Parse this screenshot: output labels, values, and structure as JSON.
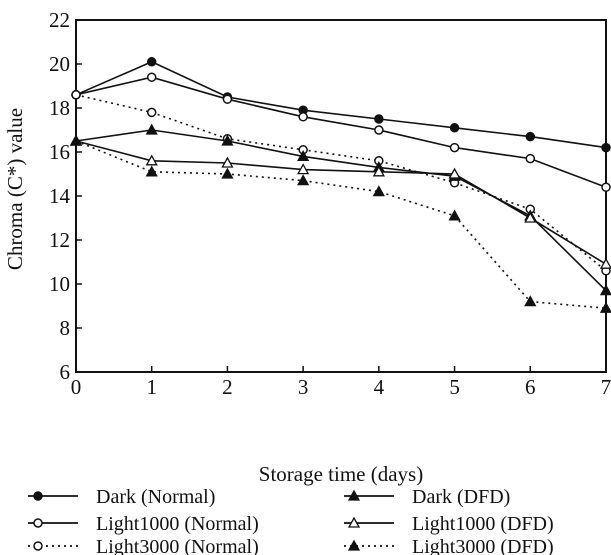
{
  "chart_data": {
    "type": "line",
    "title": "",
    "xlabel": "Storage time (days)",
    "ylabel": "Chroma (C*) value",
    "xlim": [
      0,
      7
    ],
    "ylim": [
      6,
      22
    ],
    "xticks": [
      0,
      1,
      2,
      3,
      4,
      5,
      6,
      7
    ],
    "yticks": [
      6,
      8,
      10,
      12,
      14,
      16,
      18,
      20,
      22
    ],
    "grid": false,
    "legend_position": "bottom",
    "x": [
      0,
      1,
      2,
      3,
      4,
      5,
      6,
      7
    ],
    "series": [
      {
        "name": "Dark (Normal)",
        "values": [
          18.6,
          20.1,
          18.5,
          17.9,
          17.5,
          17.1,
          16.7,
          16.2
        ],
        "marker": "filled-circle",
        "line": "solid"
      },
      {
        "name": "Light1000 (Normal)",
        "values": [
          18.6,
          19.4,
          18.4,
          17.6,
          17.0,
          16.2,
          15.7,
          14.4
        ],
        "marker": "open-circle",
        "line": "solid"
      },
      {
        "name": "Light3000 (Normal)",
        "values": [
          18.6,
          17.8,
          16.6,
          16.1,
          15.6,
          14.6,
          13.4,
          10.6
        ],
        "marker": "open-circle",
        "line": "dotted"
      },
      {
        "name": "Dark (DFD)",
        "values": [
          16.5,
          17.0,
          16.5,
          15.8,
          15.3,
          14.9,
          13.1,
          9.7
        ],
        "marker": "filled-triangle",
        "line": "solid"
      },
      {
        "name": "Light1000 (DFD)",
        "values": [
          16.5,
          15.6,
          15.5,
          15.2,
          15.1,
          15.0,
          13.0,
          10.9
        ],
        "marker": "open-triangle",
        "line": "solid"
      },
      {
        "name": "Light3000 (DFD)",
        "values": [
          16.5,
          15.1,
          15.0,
          14.7,
          14.2,
          13.1,
          9.2,
          8.9
        ],
        "marker": "filled-triangle",
        "line": "dotted"
      }
    ]
  }
}
